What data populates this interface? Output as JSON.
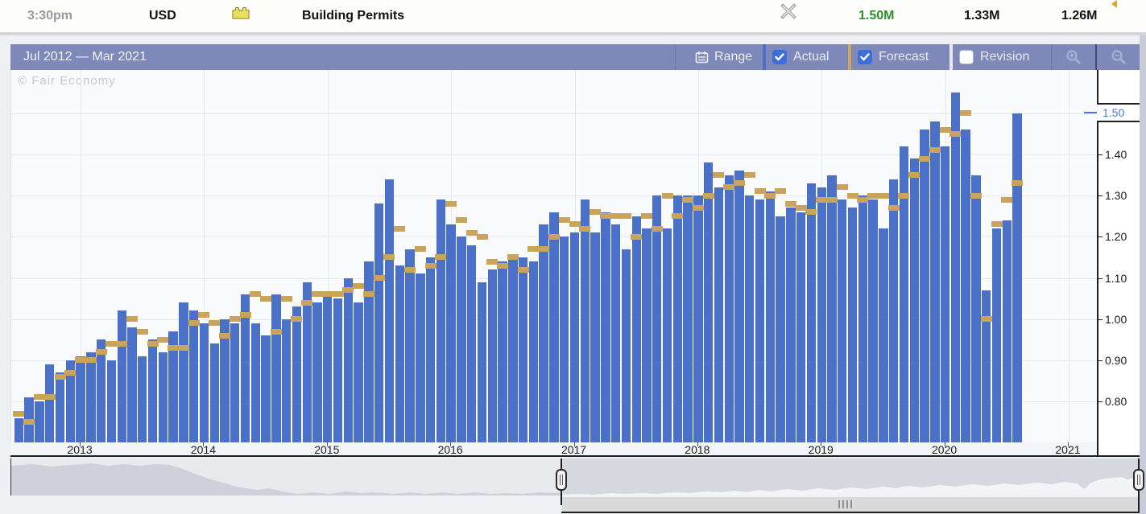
{
  "topbar": {
    "time": "3:30pm",
    "currency": "USD",
    "event": "Building Permits",
    "actual": "1.50M",
    "forecast": "1.33M",
    "previous": "1.26M",
    "actual_color": "#2e8e2e",
    "revision_marker": "revised-previous"
  },
  "header": {
    "range_label": "Jul 2012 — Mar 2021",
    "range_button": "Range",
    "actual_label": "Actual",
    "forecast_label": "Forecast",
    "revision_label": "Revision",
    "actual_checked": true,
    "forecast_checked": true,
    "revision_checked": false
  },
  "watermark": "© Fair Economy",
  "colors": {
    "actual_bar": "#4a70c8",
    "forecast_marker": "#c9a45a",
    "header_bar": "#7e89b9",
    "checkbox_checked": "#3d6ede",
    "current_value_label": "#4a76d8"
  },
  "chart_data": {
    "type": "bar",
    "title": "Building Permits",
    "currency": "USD",
    "x_range_label": "Jul 2012 — Mar 2021",
    "frequency": "monthly",
    "start_month": "Jul 2012",
    "x_year_ticks": [
      "2013",
      "2014",
      "2015",
      "2016",
      "2017",
      "2018",
      "2019",
      "2020",
      "2021"
    ],
    "y_axis": {
      "ticks": [
        "0.80",
        "0.90",
        "1.00",
        "1.10",
        "1.20",
        "1.30",
        "1.40"
      ],
      "current": "1.50",
      "unit": "M"
    },
    "ylim": [
      0.7,
      1.575
    ],
    "legend": [
      {
        "label": "Actual",
        "checked": true,
        "color": "#4a70c8"
      },
      {
        "label": "Forecast",
        "checked": true,
        "color": "#c9a45a"
      },
      {
        "label": "Revision",
        "checked": false,
        "color": "#ffffff"
      }
    ],
    "series": [
      {
        "name": "Actual",
        "color": "#4a70c8",
        "values": [
          0.76,
          0.81,
          0.8,
          0.89,
          0.87,
          0.9,
          0.91,
          0.92,
          0.95,
          0.9,
          1.02,
          0.98,
          0.91,
          0.95,
          0.92,
          0.97,
          1.04,
          1.02,
          0.99,
          0.94,
          1.0,
          0.99,
          1.06,
          0.99,
          0.96,
          1.06,
          1.0,
          1.03,
          1.09,
          1.04,
          1.06,
          1.05,
          1.1,
          1.04,
          1.14,
          1.28,
          1.34,
          1.13,
          1.17,
          1.11,
          1.15,
          1.29,
          1.23,
          1.2,
          1.18,
          1.09,
          1.12,
          1.14,
          1.15,
          1.15,
          1.14,
          1.23,
          1.26,
          1.2,
          1.21,
          1.29,
          1.21,
          1.26,
          1.23,
          1.17,
          1.25,
          1.22,
          1.3,
          1.22,
          1.3,
          1.3,
          1.3,
          1.38,
          1.32,
          1.35,
          1.36,
          1.3,
          1.29,
          1.31,
          1.25,
          1.27,
          1.26,
          1.33,
          1.32,
          1.35,
          1.29,
          1.27,
          1.3,
          1.29,
          1.22,
          1.34,
          1.42,
          1.39,
          1.46,
          1.48,
          1.42,
          1.55,
          1.46,
          1.35,
          1.07,
          1.22,
          1.24,
          1.5
        ]
      },
      {
        "name": "Forecast",
        "color": "#c9a45a",
        "values": [
          0.77,
          0.75,
          0.81,
          0.81,
          0.86,
          0.87,
          0.9,
          0.9,
          0.92,
          0.94,
          0.94,
          1.0,
          0.97,
          0.94,
          0.95,
          0.93,
          0.93,
          0.99,
          1.01,
          0.99,
          0.96,
          1.0,
          1.01,
          1.06,
          1.05,
          0.97,
          1.05,
          1.0,
          1.04,
          1.06,
          1.06,
          1.06,
          1.07,
          1.08,
          1.06,
          1.1,
          1.15,
          1.22,
          1.12,
          1.17,
          1.13,
          1.15,
          1.28,
          1.24,
          1.21,
          1.2,
          1.14,
          1.13,
          1.15,
          1.12,
          1.17,
          1.17,
          1.2,
          1.24,
          1.23,
          1.22,
          1.26,
          1.25,
          1.25,
          1.25,
          1.2,
          1.25,
          1.22,
          1.3,
          1.25,
          1.29,
          1.27,
          1.3,
          1.35,
          1.32,
          1.33,
          1.35,
          1.31,
          1.3,
          1.31,
          1.28,
          1.27,
          1.26,
          1.29,
          1.29,
          1.32,
          1.3,
          1.29,
          1.3,
          1.3,
          1.27,
          1.3,
          1.35,
          1.39,
          1.41,
          1.46,
          1.45,
          1.5,
          1.3,
          1.0,
          1.23,
          1.29,
          1.33
        ]
      }
    ]
  }
}
